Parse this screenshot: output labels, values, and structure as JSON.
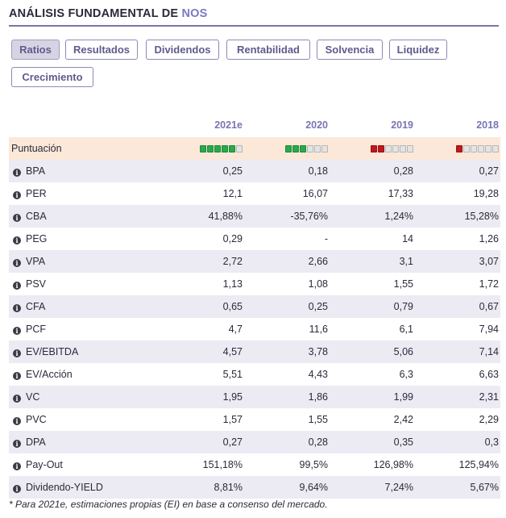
{
  "header": {
    "title_prefix": "ANÁLISIS FUNDAMENTAL DE ",
    "company": "NOS"
  },
  "tabs": [
    "Ratios",
    "Resultados",
    "Dividendos",
    "Rentabilidad",
    "Solvencia",
    "Liquidez",
    "Crecimiento"
  ],
  "active_tab": "Ratios",
  "table": {
    "columns": [
      "2021e",
      "2020",
      "2019",
      "2018"
    ],
    "score": {
      "label": "Puntuación",
      "max": 6,
      "values": [
        5,
        3,
        2,
        1
      ],
      "colors": [
        "green",
        "green",
        "red",
        "red"
      ]
    },
    "rows": [
      {
        "name": "BPA",
        "values": [
          "0,25",
          "0,18",
          "0,28",
          "0,27"
        ]
      },
      {
        "name": "PER",
        "values": [
          "12,1",
          "16,07",
          "17,33",
          "19,28"
        ]
      },
      {
        "name": "CBA",
        "values": [
          "41,88%",
          "-35,76%",
          "1,24%",
          "15,28%"
        ]
      },
      {
        "name": "PEG",
        "values": [
          "0,29",
          "-",
          "14",
          "1,26"
        ]
      },
      {
        "name": "VPA",
        "values": [
          "2,72",
          "2,66",
          "3,1",
          "3,07"
        ]
      },
      {
        "name": "PSV",
        "values": [
          "1,13",
          "1,08",
          "1,55",
          "1,72"
        ]
      },
      {
        "name": "CFA",
        "values": [
          "0,65",
          "0,25",
          "0,79",
          "0,67"
        ]
      },
      {
        "name": "PCF",
        "values": [
          "4,7",
          "11,6",
          "6,1",
          "7,94"
        ]
      },
      {
        "name": "EV/EBITDA",
        "values": [
          "4,57",
          "3,78",
          "5,06",
          "7,14"
        ]
      },
      {
        "name": "EV/Acción",
        "values": [
          "5,51",
          "4,43",
          "6,3",
          "6,63"
        ]
      },
      {
        "name": "VC",
        "values": [
          "1,95",
          "1,86",
          "1,99",
          "2,31"
        ]
      },
      {
        "name": "PVC",
        "values": [
          "1,57",
          "1,55",
          "2,42",
          "2,29"
        ]
      },
      {
        "name": "DPA",
        "values": [
          "0,27",
          "0,28",
          "0,35",
          "0,3"
        ]
      },
      {
        "name": "Pay-Out",
        "values": [
          "151,18%",
          "99,5%",
          "126,98%",
          "125,94%"
        ]
      },
      {
        "name": "Dividendo-YIELD",
        "values": [
          "8,81%",
          "9,64%",
          "7,24%",
          "5,67%"
        ]
      }
    ]
  },
  "footnote": "* Para 2021e, estimaciones propias (EI) en base a consenso del mercado.",
  "colors": {
    "accent": "#7d77c6",
    "score_row_bg": "#fbe8d8",
    "stripe": "#ecebf3",
    "green": "#2aa84a",
    "red": "#c0181e"
  }
}
